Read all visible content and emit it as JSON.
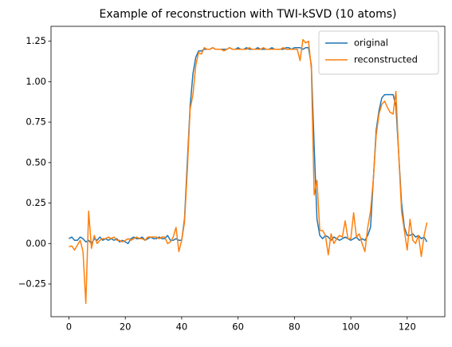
{
  "chart_data": {
    "type": "line",
    "title": "Example of reconstruction with TWI-kSVD (10 atoms)",
    "x": [
      0,
      1,
      2,
      3,
      4,
      5,
      6,
      7,
      8,
      9,
      10,
      11,
      12,
      13,
      14,
      15,
      16,
      17,
      18,
      19,
      20,
      21,
      22,
      23,
      24,
      25,
      26,
      27,
      28,
      29,
      30,
      31,
      32,
      33,
      34,
      35,
      36,
      37,
      38,
      39,
      40,
      41,
      42,
      43,
      44,
      45,
      46,
      47,
      48,
      49,
      50,
      51,
      52,
      53,
      54,
      55,
      56,
      57,
      58,
      59,
      60,
      61,
      62,
      63,
      64,
      65,
      66,
      67,
      68,
      69,
      70,
      71,
      72,
      73,
      74,
      75,
      76,
      77,
      78,
      79,
      80,
      81,
      82,
      83,
      84,
      85,
      86,
      87,
      88,
      89,
      90,
      91,
      92,
      93,
      94,
      95,
      96,
      97,
      98,
      99,
      100,
      101,
      102,
      103,
      104,
      105,
      106,
      107,
      108,
      109,
      110,
      111,
      112,
      113,
      114,
      115,
      116,
      117,
      118,
      119,
      120,
      121,
      122,
      123,
      124,
      125,
      126,
      127
    ],
    "series": [
      {
        "name": "original",
        "color": "#1f77b4",
        "values": [
          0.03,
          0.04,
          0.02,
          0.02,
          0.04,
          0.03,
          0.01,
          0.02,
          0.0,
          0.03,
          0.02,
          0.04,
          0.02,
          0.03,
          0.02,
          0.03,
          0.02,
          0.03,
          0.01,
          0.02,
          0.01,
          0.0,
          0.03,
          0.04,
          0.03,
          0.03,
          0.04,
          0.02,
          0.03,
          0.04,
          0.03,
          0.03,
          0.04,
          0.03,
          0.03,
          0.05,
          0.02,
          0.02,
          0.03,
          0.02,
          0.02,
          0.15,
          0.5,
          0.85,
          1.05,
          1.15,
          1.19,
          1.19,
          1.2,
          1.2,
          1.2,
          1.21,
          1.2,
          1.2,
          1.2,
          1.2,
          1.2,
          1.21,
          1.2,
          1.2,
          1.21,
          1.2,
          1.2,
          1.21,
          1.2,
          1.2,
          1.2,
          1.21,
          1.2,
          1.2,
          1.2,
          1.2,
          1.21,
          1.2,
          1.2,
          1.2,
          1.2,
          1.21,
          1.21,
          1.2,
          1.21,
          1.21,
          1.21,
          1.2,
          1.21,
          1.21,
          1.1,
          0.6,
          0.15,
          0.05,
          0.03,
          0.05,
          0.04,
          0.02,
          0.04,
          0.03,
          0.02,
          0.03,
          0.04,
          0.03,
          0.02,
          0.03,
          0.04,
          0.02,
          0.03,
          0.02,
          0.05,
          0.1,
          0.4,
          0.7,
          0.82,
          0.9,
          0.92,
          0.92,
          0.92,
          0.92,
          0.85,
          0.55,
          0.25,
          0.1,
          0.05,
          0.05,
          0.06,
          0.04,
          0.05,
          0.03,
          0.04,
          0.01
        ]
      },
      {
        "name": "reconstructed",
        "color": "#ff7f0e",
        "values": [
          -0.02,
          -0.015,
          -0.04,
          -0.01,
          0.02,
          -0.05,
          -0.37,
          0.2,
          -0.03,
          0.05,
          0.0,
          0.02,
          0.03,
          0.03,
          0.04,
          0.03,
          0.04,
          0.02,
          0.02,
          0.01,
          0.02,
          0.03,
          0.02,
          0.03,
          0.04,
          0.03,
          0.03,
          0.02,
          0.04,
          0.04,
          0.04,
          0.04,
          0.03,
          0.04,
          0.04,
          0.0,
          0.01,
          0.04,
          0.1,
          -0.05,
          0.02,
          0.13,
          0.45,
          0.83,
          0.92,
          1.1,
          1.18,
          1.17,
          1.21,
          1.2,
          1.2,
          1.21,
          1.2,
          1.2,
          1.2,
          1.19,
          1.2,
          1.21,
          1.2,
          1.2,
          1.2,
          1.2,
          1.2,
          1.2,
          1.21,
          1.2,
          1.2,
          1.2,
          1.2,
          1.21,
          1.2,
          1.2,
          1.2,
          1.2,
          1.2,
          1.2,
          1.21,
          1.2,
          1.2,
          1.2,
          1.2,
          1.2,
          1.13,
          1.26,
          1.24,
          1.25,
          1.08,
          0.3,
          0.39,
          0.08,
          0.08,
          0.05,
          -0.07,
          0.06,
          0.0,
          0.03,
          0.05,
          0.04,
          0.14,
          0.03,
          0.03,
          0.19,
          0.04,
          0.06,
          0.0,
          -0.05,
          0.1,
          0.2,
          0.4,
          0.67,
          0.8,
          0.86,
          0.88,
          0.84,
          0.81,
          0.8,
          0.94,
          0.55,
          0.2,
          0.08,
          -0.04,
          0.15,
          0.02,
          0.0,
          0.05,
          -0.08,
          0.05,
          0.13
        ]
      }
    ],
    "xlim": [
      -6.35,
      133.35
    ],
    "xticks": [
      0,
      20,
      40,
      60,
      80,
      100,
      120
    ],
    "ylim": [
      -0.452,
      1.342
    ],
    "yticks": [
      {
        "value": -0.25,
        "label": "−0.25"
      },
      {
        "value": 0,
        "label": "0.00"
      },
      {
        "value": 0.25,
        "label": "0.25"
      },
      {
        "value": 0.5,
        "label": "0.50"
      },
      {
        "value": 0.75,
        "label": "0.75"
      },
      {
        "value": 1,
        "label": "1.00"
      },
      {
        "value": 1.25,
        "label": "1.25"
      }
    ],
    "legend": "upper right"
  }
}
